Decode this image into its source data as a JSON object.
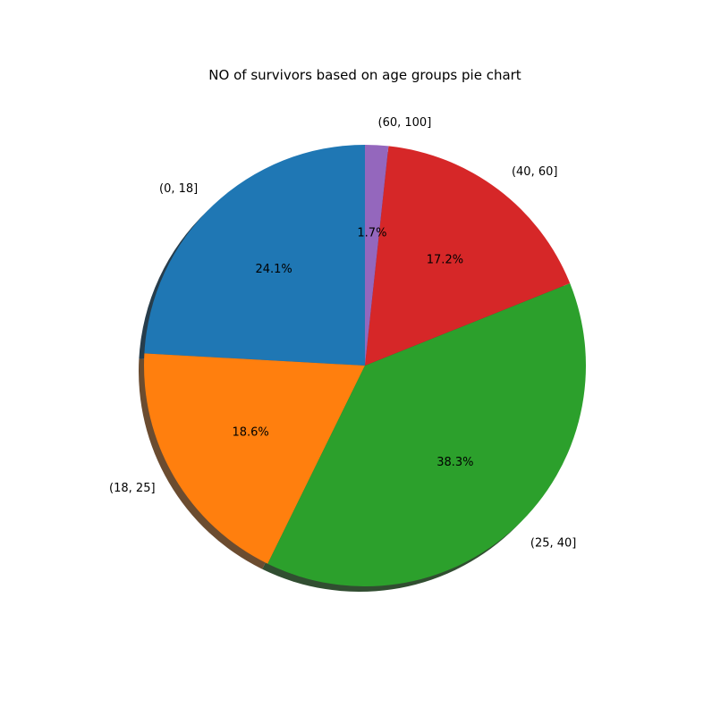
{
  "chart_data": {
    "type": "pie",
    "title": "NO of survivors based on age groups pie chart",
    "categories": [
      "(0, 18]",
      "(18, 25]",
      "(25, 40]",
      "(40, 60]",
      "(60, 100]"
    ],
    "values": [
      24.1,
      18.6,
      38.3,
      17.2,
      1.7
    ],
    "percent_labels": [
      "24.1%",
      "18.6%",
      "38.3%",
      "17.2%",
      "1.7%"
    ],
    "colors": [
      "#1f77b4",
      "#ff7f0e",
      "#2ca02c",
      "#d62728",
      "#9467bd"
    ],
    "start_angle": 90,
    "direction": "counterclockwise",
    "shadow": true,
    "legend": "none"
  }
}
